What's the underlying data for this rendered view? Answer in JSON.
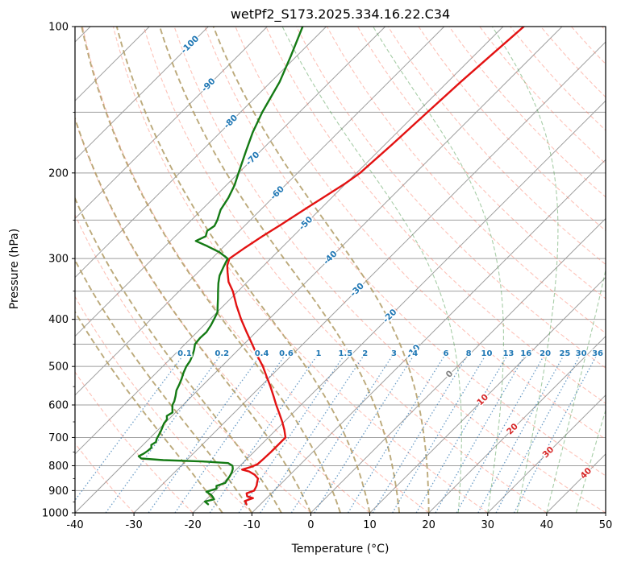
{
  "title": "wetPf2_S173.2025.334.16.22.C34",
  "axes": {
    "xlabel": "Temperature (°C)",
    "ylabel": "Pressure (hPa)",
    "xlim": [
      -40,
      50
    ],
    "plim": [
      100,
      1000
    ],
    "x_ticks": [
      -40,
      -30,
      -20,
      -10,
      0,
      10,
      20,
      30,
      40,
      50
    ],
    "p_ticks": [
      100,
      200,
      300,
      400,
      500,
      600,
      700,
      800,
      900,
      1000
    ],
    "p_minor_gridlines": [
      150,
      250,
      350,
      450
    ],
    "p_minor_ticks": [
      150,
      250,
      350,
      450,
      550,
      650,
      750,
      850,
      950
    ]
  },
  "chart_data": {
    "type": "line",
    "variant": "skewt-logp",
    "skew": "45deg",
    "grid": true,
    "series": [
      {
        "name": "temperature",
        "color": "#e31212",
        "points": [
          [
            100,
            -46.5
          ],
          [
            115,
            -47.2
          ],
          [
            130,
            -47.8
          ],
          [
            150,
            -48.3
          ],
          [
            175,
            -48.8
          ],
          [
            200,
            -49.4
          ],
          [
            210,
            -50.1
          ],
          [
            225,
            -51.5
          ],
          [
            240,
            -52.8
          ],
          [
            255,
            -54
          ],
          [
            270,
            -55.2
          ],
          [
            285,
            -56.2
          ],
          [
            300,
            -57
          ],
          [
            310,
            -56.2
          ],
          [
            320,
            -55
          ],
          [
            335,
            -53.2
          ],
          [
            350,
            -50.9
          ],
          [
            375,
            -47.8
          ],
          [
            400,
            -44.7
          ],
          [
            425,
            -41.6
          ],
          [
            450,
            -38.6
          ],
          [
            475,
            -35.8
          ],
          [
            500,
            -33
          ],
          [
            525,
            -30.6
          ],
          [
            550,
            -28.3
          ],
          [
            575,
            -26.2
          ],
          [
            600,
            -24.2
          ],
          [
            625,
            -22.2
          ],
          [
            650,
            -20.3
          ],
          [
            675,
            -18.6
          ],
          [
            700,
            -17.1
          ],
          [
            725,
            -17.1
          ],
          [
            750,
            -17.1
          ],
          [
            775,
            -17.2
          ],
          [
            795,
            -17.3
          ],
          [
            805,
            -18
          ],
          [
            815,
            -19
          ],
          [
            822,
            -17.5
          ],
          [
            835,
            -16
          ],
          [
            850,
            -14.8
          ],
          [
            865,
            -14.3
          ],
          [
            880,
            -13.8
          ],
          [
            900,
            -13.4
          ],
          [
            912,
            -14.2
          ],
          [
            925,
            -13.6
          ],
          [
            933,
            -12.3
          ],
          [
            945,
            -13.2
          ],
          [
            952,
            -12.8
          ],
          [
            960,
            -12.4
          ]
        ]
      },
      {
        "name": "dewpoint",
        "color": "#147a14",
        "points": [
          [
            100,
            -84
          ],
          [
            115,
            -81
          ],
          [
            130,
            -78.5
          ],
          [
            150,
            -76.3
          ],
          [
            165,
            -74.5
          ],
          [
            180,
            -72.5
          ],
          [
            200,
            -70
          ],
          [
            212,
            -68.6
          ],
          [
            225,
            -67.5
          ],
          [
            238,
            -66.8
          ],
          [
            250,
            -65.6
          ],
          [
            257,
            -65.1
          ],
          [
            263,
            -65.5
          ],
          [
            270,
            -64.8
          ],
          [
            276,
            -65.7
          ],
          [
            283,
            -62.8
          ],
          [
            291,
            -59.8
          ],
          [
            300,
            -57.3
          ],
          [
            312,
            -56.6
          ],
          [
            325,
            -55.8
          ],
          [
            337,
            -54.7
          ],
          [
            350,
            -53.4
          ],
          [
            362,
            -52.2
          ],
          [
            375,
            -51
          ],
          [
            387,
            -49.9
          ],
          [
            400,
            -49.3
          ],
          [
            412,
            -48.8
          ],
          [
            425,
            -48.4
          ],
          [
            437,
            -48.5
          ],
          [
            450,
            -48.3
          ],
          [
            462,
            -47.5
          ],
          [
            475,
            -46.8
          ],
          [
            487,
            -46.3
          ],
          [
            500,
            -46
          ],
          [
            515,
            -45.4
          ],
          [
            530,
            -44.7
          ],
          [
            545,
            -44.1
          ],
          [
            560,
            -43.6
          ],
          [
            575,
            -42.8
          ],
          [
            590,
            -42.1
          ],
          [
            600,
            -41.8
          ],
          [
            612,
            -41.1
          ],
          [
            622,
            -40.5
          ],
          [
            632,
            -40.9
          ],
          [
            642,
            -40.3
          ],
          [
            655,
            -40.1
          ],
          [
            667,
            -39.7
          ],
          [
            680,
            -39.3
          ],
          [
            692,
            -39
          ],
          [
            705,
            -38.7
          ],
          [
            715,
            -38.3
          ],
          [
            725,
            -38.6
          ],
          [
            735,
            -38.1
          ],
          [
            745,
            -38.2
          ],
          [
            755,
            -38.4
          ],
          [
            765,
            -38.8
          ],
          [
            773,
            -38
          ],
          [
            779,
            -34
          ],
          [
            784,
            -27
          ],
          [
            790,
            -22.5
          ],
          [
            800,
            -21.3
          ],
          [
            812,
            -20.7
          ],
          [
            825,
            -20.3
          ],
          [
            840,
            -20
          ],
          [
            855,
            -19.8
          ],
          [
            868,
            -19.6
          ],
          [
            880,
            -20.6
          ],
          [
            892,
            -20.1
          ],
          [
            905,
            -21.3
          ],
          [
            918,
            -20
          ],
          [
            928,
            -19.3
          ],
          [
            938,
            -18.7
          ],
          [
            948,
            -19.9
          ],
          [
            960,
            -18.9
          ]
        ]
      }
    ],
    "background": {
      "isotherms": {
        "color": "#9e9e9e",
        "min": -160,
        "max": 50,
        "step": 10
      },
      "isotherm_labels": [
        {
          "t": -100,
          "p": 109,
          "color": "#1f77b4"
        },
        {
          "t": -90,
          "p": 132,
          "color": "#1f77b4"
        },
        {
          "t": -80,
          "p": 157,
          "color": "#1f77b4"
        },
        {
          "t": -70,
          "p": 187,
          "color": "#1f77b4"
        },
        {
          "t": -60,
          "p": 220,
          "color": "#1f77b4"
        },
        {
          "t": -50,
          "p": 254,
          "color": "#1f77b4"
        },
        {
          "t": -40,
          "p": 299,
          "color": "#1f77b4"
        },
        {
          "t": -30,
          "p": 348,
          "color": "#1f77b4"
        },
        {
          "t": -20,
          "p": 394,
          "color": "#1f77b4"
        },
        {
          "t": -10,
          "p": 466,
          "color": "#1f77b4"
        },
        {
          "t": 0,
          "p": 519,
          "color": "#808080"
        },
        {
          "t": 10,
          "p": 586,
          "color": "#d62728"
        },
        {
          "t": 20,
          "p": 673,
          "color": "#d62728"
        },
        {
          "t": 30,
          "p": 751,
          "color": "#d62728"
        },
        {
          "t": 40,
          "p": 830,
          "color": "#d62728"
        }
      ],
      "dry_adiabats": {
        "color": "rgba(250,110,85,0.42)",
        "theta_c": [
          -30,
          -20,
          -10,
          0,
          10,
          20,
          30,
          40,
          50,
          60,
          70,
          80,
          90,
          100,
          110,
          120,
          130,
          140,
          150,
          160,
          170,
          180,
          190,
          200
        ]
      },
      "moist_adiabats_tan": {
        "color": "rgba(176,155,100,0.85)",
        "thetaw_c": [
          -15,
          -10,
          -5,
          0,
          5,
          10,
          15,
          20
        ]
      },
      "moist_adiabats_green": {
        "color": "rgba(60,145,60,0.45)",
        "thetaw_c": [
          25,
          30,
          35,
          40,
          45,
          50,
          55,
          60
        ]
      },
      "mixing_ratio": {
        "line_color": "rgba(45,115,175,0.7)",
        "label_color": "#1f77b4",
        "values": [
          0.1,
          0.2,
          0.4,
          0.6,
          1,
          1.5,
          2,
          3,
          4,
          6,
          8,
          10,
          13,
          16,
          20,
          25,
          30,
          36
        ],
        "label_pressure": 470,
        "top_pressure": 478
      }
    }
  }
}
